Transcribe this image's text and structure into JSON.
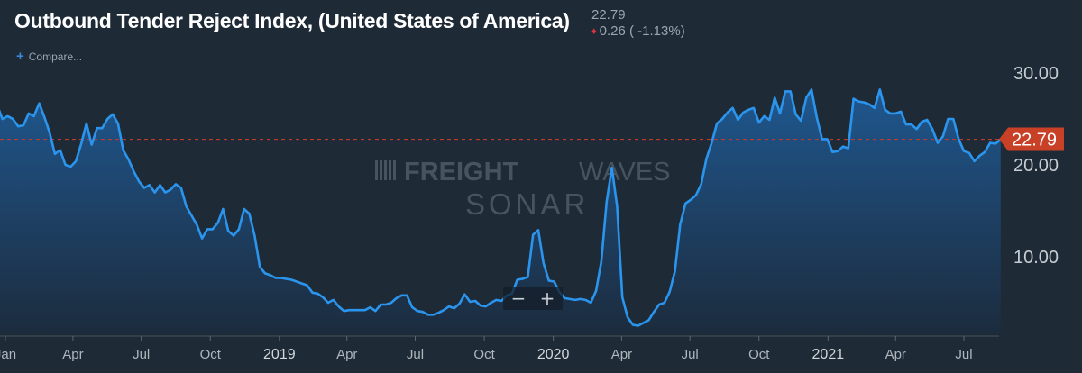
{
  "header": {
    "title": "Outbound Tender Reject Index, (United States of America)",
    "last_value": "22.79",
    "change_value": "0.26",
    "change_pct": "( -1.13%)",
    "change_direction_color": "#e0323a"
  },
  "toolbar": {
    "compare_label": "Compare...",
    "zoom_out_label": "−",
    "zoom_in_label": "+"
  },
  "watermark": {
    "line1_bold": "FREIGHT",
    "line1_light": "WAVES",
    "line2": "SONAR"
  },
  "chart_data": {
    "type": "area",
    "title": "Outbound Tender Reject Index, (United States of America)",
    "xlabel": "",
    "ylabel": "",
    "x_unit": "weekly dates",
    "xlim": [
      "2018-01-01",
      "2021-09-01"
    ],
    "ylim": [
      0,
      37.5
    ],
    "grid": false,
    "y_axis_side": "right",
    "y_ticks": [
      10,
      20,
      30
    ],
    "y_tick_labels": [
      "10.00",
      "20.00",
      "30.00"
    ],
    "x_ticks": [
      {
        "date": "2018-01-01",
        "label": "Jan",
        "year": false
      },
      {
        "date": "2018-04-01",
        "label": "Apr",
        "year": false
      },
      {
        "date": "2018-07-01",
        "label": "Jul",
        "year": false
      },
      {
        "date": "2018-10-01",
        "label": "Oct",
        "year": false
      },
      {
        "date": "2019-01-01",
        "label": "2019",
        "year": true
      },
      {
        "date": "2019-04-01",
        "label": "Apr",
        "year": false
      },
      {
        "date": "2019-07-01",
        "label": "Jul",
        "year": false
      },
      {
        "date": "2019-10-01",
        "label": "Oct",
        "year": false
      },
      {
        "date": "2020-01-01",
        "label": "2020",
        "year": true
      },
      {
        "date": "2020-04-01",
        "label": "Apr",
        "year": false
      },
      {
        "date": "2020-07-01",
        "label": "Jul",
        "year": false
      },
      {
        "date": "2020-10-01",
        "label": "Oct",
        "year": false
      },
      {
        "date": "2021-01-01",
        "label": "2021",
        "year": true
      },
      {
        "date": "2021-04-01",
        "label": "Apr",
        "year": false
      },
      {
        "date": "2021-07-01",
        "label": "Jul",
        "year": false
      }
    ],
    "reference_line": {
      "value": 22.79,
      "style": "dashed",
      "color": "#c0392b",
      "label": "22.79"
    },
    "colors": {
      "line": "#2b95ee",
      "fill_top": "#1f5a94",
      "fill_bottom": "#1c2c3f",
      "badge": "#c84126"
    },
    "series": [
      {
        "name": "Outbound Tender Reject Index",
        "points": [
          [
            "2017-12-21",
            26.5
          ],
          [
            "2017-12-28",
            25.0
          ],
          [
            "2018-01-04",
            25.3
          ],
          [
            "2018-01-11",
            25.0
          ],
          [
            "2018-01-18",
            24.2
          ],
          [
            "2018-01-25",
            24.3
          ],
          [
            "2018-02-01",
            25.6
          ],
          [
            "2018-02-08",
            25.3
          ],
          [
            "2018-02-15",
            26.7
          ],
          [
            "2018-02-22",
            25.2
          ],
          [
            "2018-03-01",
            23.5
          ],
          [
            "2018-03-08",
            21.2
          ],
          [
            "2018-03-15",
            21.6
          ],
          [
            "2018-03-22",
            20.0
          ],
          [
            "2018-03-29",
            19.8
          ],
          [
            "2018-04-05",
            20.4
          ],
          [
            "2018-04-12",
            22.3
          ],
          [
            "2018-04-19",
            24.5
          ],
          [
            "2018-04-26",
            22.2
          ],
          [
            "2018-05-03",
            24.0
          ],
          [
            "2018-05-10",
            24.0
          ],
          [
            "2018-05-17",
            25.0
          ],
          [
            "2018-05-24",
            25.5
          ],
          [
            "2018-05-31",
            24.5
          ],
          [
            "2018-06-07",
            21.6
          ],
          [
            "2018-06-14",
            20.6
          ],
          [
            "2018-06-21",
            19.3
          ],
          [
            "2018-06-28",
            18.2
          ],
          [
            "2018-07-05",
            17.5
          ],
          [
            "2018-07-12",
            17.8
          ],
          [
            "2018-07-19",
            17.0
          ],
          [
            "2018-07-26",
            17.8
          ],
          [
            "2018-08-02",
            17.0
          ],
          [
            "2018-08-09",
            17.3
          ],
          [
            "2018-08-16",
            17.9
          ],
          [
            "2018-08-23",
            17.5
          ],
          [
            "2018-08-30",
            15.5
          ],
          [
            "2018-09-06",
            14.5
          ],
          [
            "2018-09-13",
            13.5
          ],
          [
            "2018-09-20",
            12.0
          ],
          [
            "2018-09-27",
            13.0
          ],
          [
            "2018-10-04",
            13.0
          ],
          [
            "2018-10-11",
            13.7
          ],
          [
            "2018-10-18",
            15.2
          ],
          [
            "2018-10-25",
            12.8
          ],
          [
            "2018-11-01",
            12.3
          ],
          [
            "2018-11-08",
            13.0
          ],
          [
            "2018-11-15",
            15.2
          ],
          [
            "2018-11-22",
            14.7
          ],
          [
            "2018-11-29",
            12.3
          ],
          [
            "2018-12-06",
            8.9
          ],
          [
            "2018-12-13",
            8.2
          ],
          [
            "2018-12-20",
            8.0
          ],
          [
            "2018-12-27",
            7.7
          ],
          [
            "2019-01-03",
            7.7
          ],
          [
            "2019-01-10",
            7.6
          ],
          [
            "2019-01-17",
            7.5
          ],
          [
            "2019-01-24",
            7.3
          ],
          [
            "2019-01-31",
            7.1
          ],
          [
            "2019-02-07",
            6.9
          ],
          [
            "2019-02-14",
            6.1
          ],
          [
            "2019-02-21",
            6.0
          ],
          [
            "2019-02-28",
            5.6
          ],
          [
            "2019-03-07",
            5.0
          ],
          [
            "2019-03-14",
            5.3
          ],
          [
            "2019-03-21",
            4.6
          ],
          [
            "2019-03-28",
            4.1
          ],
          [
            "2019-04-04",
            4.2
          ],
          [
            "2019-04-11",
            4.2
          ],
          [
            "2019-04-18",
            4.2
          ],
          [
            "2019-04-25",
            4.2
          ],
          [
            "2019-05-02",
            4.5
          ],
          [
            "2019-05-09",
            4.1
          ],
          [
            "2019-05-16",
            4.8
          ],
          [
            "2019-05-23",
            4.8
          ],
          [
            "2019-05-30",
            5.0
          ],
          [
            "2019-06-06",
            5.5
          ],
          [
            "2019-06-13",
            5.8
          ],
          [
            "2019-06-20",
            5.8
          ],
          [
            "2019-06-27",
            4.5
          ],
          [
            "2019-07-04",
            4.1
          ],
          [
            "2019-07-11",
            4.0
          ],
          [
            "2019-07-18",
            3.7
          ],
          [
            "2019-07-25",
            3.7
          ],
          [
            "2019-08-01",
            3.9
          ],
          [
            "2019-08-08",
            4.2
          ],
          [
            "2019-08-15",
            4.6
          ],
          [
            "2019-08-22",
            4.4
          ],
          [
            "2019-08-29",
            4.9
          ],
          [
            "2019-09-05",
            5.9
          ],
          [
            "2019-09-12",
            5.1
          ],
          [
            "2019-09-19",
            5.2
          ],
          [
            "2019-09-26",
            4.7
          ],
          [
            "2019-10-03",
            4.6
          ],
          [
            "2019-10-10",
            5.0
          ],
          [
            "2019-10-17",
            5.3
          ],
          [
            "2019-10-24",
            5.2
          ],
          [
            "2019-10-31",
            5.8
          ],
          [
            "2019-11-07",
            6.0
          ],
          [
            "2019-11-14",
            7.5
          ],
          [
            "2019-11-21",
            7.6
          ],
          [
            "2019-11-28",
            7.8
          ],
          [
            "2019-12-05",
            12.4
          ],
          [
            "2019-12-12",
            12.9
          ],
          [
            "2019-12-19",
            9.3
          ],
          [
            "2019-12-26",
            7.4
          ],
          [
            "2020-01-02",
            7.3
          ],
          [
            "2020-01-09",
            6.2
          ],
          [
            "2020-01-16",
            5.5
          ],
          [
            "2020-01-23",
            5.4
          ],
          [
            "2020-01-30",
            5.3
          ],
          [
            "2020-02-06",
            5.4
          ],
          [
            "2020-02-13",
            5.3
          ],
          [
            "2020-02-20",
            5.0
          ],
          [
            "2020-02-27",
            6.3
          ],
          [
            "2020-03-05",
            9.5
          ],
          [
            "2020-03-12",
            16.0
          ],
          [
            "2020-03-19",
            19.7
          ],
          [
            "2020-03-26",
            15.5
          ],
          [
            "2020-04-02",
            5.6
          ],
          [
            "2020-04-09",
            3.4
          ],
          [
            "2020-04-16",
            2.6
          ],
          [
            "2020-04-23",
            2.5
          ],
          [
            "2020-04-30",
            2.8
          ],
          [
            "2020-05-07",
            3.1
          ],
          [
            "2020-05-14",
            4.0
          ],
          [
            "2020-05-21",
            4.8
          ],
          [
            "2020-05-28",
            5.0
          ],
          [
            "2020-06-04",
            6.2
          ],
          [
            "2020-06-11",
            8.4
          ],
          [
            "2020-06-18",
            13.5
          ],
          [
            "2020-06-25",
            15.8
          ],
          [
            "2020-07-02",
            16.2
          ],
          [
            "2020-07-09",
            16.7
          ],
          [
            "2020-07-16",
            17.9
          ],
          [
            "2020-07-23",
            20.7
          ],
          [
            "2020-07-30",
            22.4
          ],
          [
            "2020-08-06",
            24.5
          ],
          [
            "2020-08-13",
            25.0
          ],
          [
            "2020-08-20",
            25.7
          ],
          [
            "2020-08-27",
            26.2
          ],
          [
            "2020-09-03",
            24.9
          ],
          [
            "2020-09-10",
            25.7
          ],
          [
            "2020-09-17",
            26.0
          ],
          [
            "2020-09-24",
            26.2
          ],
          [
            "2020-10-01",
            24.6
          ],
          [
            "2020-10-08",
            25.3
          ],
          [
            "2020-10-15",
            24.9
          ],
          [
            "2020-10-22",
            27.3
          ],
          [
            "2020-10-29",
            25.6
          ],
          [
            "2020-11-05",
            28.0
          ],
          [
            "2020-11-12",
            28.0
          ],
          [
            "2020-11-19",
            25.5
          ],
          [
            "2020-11-26",
            24.8
          ],
          [
            "2020-12-03",
            27.3
          ],
          [
            "2020-12-10",
            28.2
          ],
          [
            "2020-12-17",
            25.2
          ],
          [
            "2020-12-24",
            22.8
          ],
          [
            "2020-12-31",
            22.8
          ],
          [
            "2021-01-07",
            21.4
          ],
          [
            "2021-01-14",
            21.5
          ],
          [
            "2021-01-21",
            22.0
          ],
          [
            "2021-01-28",
            21.8
          ],
          [
            "2021-02-04",
            27.2
          ],
          [
            "2021-02-11",
            26.9
          ],
          [
            "2021-02-18",
            26.8
          ],
          [
            "2021-02-25",
            26.6
          ],
          [
            "2021-03-04",
            26.2
          ],
          [
            "2021-03-11",
            28.2
          ],
          [
            "2021-03-18",
            26.0
          ],
          [
            "2021-03-25",
            25.6
          ],
          [
            "2021-04-01",
            25.6
          ],
          [
            "2021-04-08",
            25.8
          ],
          [
            "2021-04-15",
            24.4
          ],
          [
            "2021-04-22",
            24.4
          ],
          [
            "2021-04-29",
            23.9
          ],
          [
            "2021-05-06",
            24.7
          ],
          [
            "2021-05-13",
            24.9
          ],
          [
            "2021-05-20",
            23.9
          ],
          [
            "2021-05-27",
            22.4
          ],
          [
            "2021-06-03",
            23.1
          ],
          [
            "2021-06-10",
            25.0
          ],
          [
            "2021-06-17",
            25.0
          ],
          [
            "2021-06-24",
            22.8
          ],
          [
            "2021-07-01",
            21.5
          ],
          [
            "2021-07-08",
            21.3
          ],
          [
            "2021-07-15",
            20.4
          ],
          [
            "2021-07-22",
            21.0
          ],
          [
            "2021-07-29",
            21.4
          ],
          [
            "2021-08-05",
            22.4
          ],
          [
            "2021-08-12",
            22.3
          ],
          [
            "2021-08-19",
            22.79
          ]
        ]
      }
    ]
  }
}
